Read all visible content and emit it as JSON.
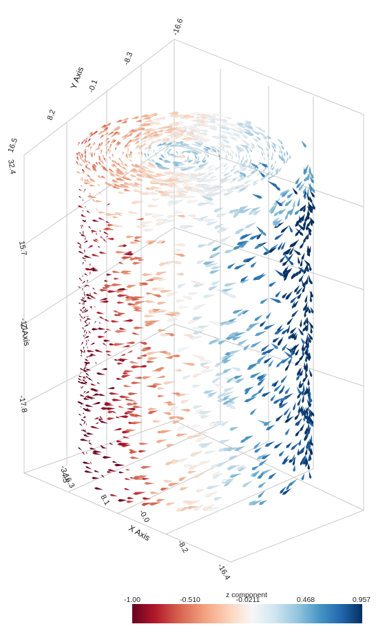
{
  "scene": {
    "axes": {
      "x_title": "X Axis",
      "y_title": "Y Axis",
      "z_title": "Z Axis",
      "x_ticks": [
        "16.3",
        "8.1",
        "-0.0",
        "-8.2",
        "-16.4"
      ],
      "y_ticks": [
        "-16.6",
        "-8.3",
        "-0.1",
        "8.2",
        "16.5"
      ],
      "z_ticks": [
        "32.4",
        "15.7",
        "-1.1",
        "-17.8",
        "-34.5"
      ]
    },
    "colorbar": {
      "title": "z component",
      "labels": [
        "-1.00",
        "-0.510",
        "-0.0211",
        "0.468",
        "0.957"
      ],
      "range": [
        -1.0,
        0.957
      ],
      "stops": [
        "#67001f",
        "#b2182b",
        "#d6604d",
        "#f4a582",
        "#fddbc7",
        "#f7f7f7",
        "#d1e5f0",
        "#92c5de",
        "#4393c3",
        "#2166ac",
        "#053061"
      ]
    }
  }
}
